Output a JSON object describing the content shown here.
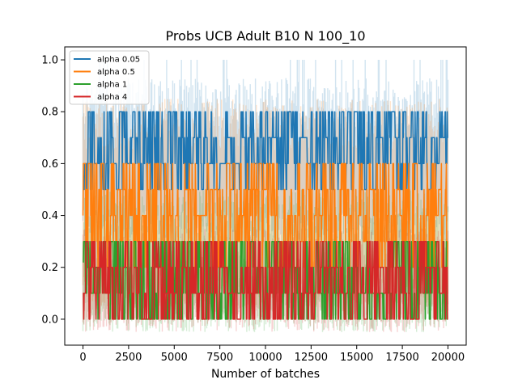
{
  "chart_data": {
    "type": "line",
    "title": "Probs UCB Adult B10 N 100_10",
    "xlabel": "Number of batches",
    "ylabel": "",
    "xlim": [
      -1000,
      21000
    ],
    "ylim": [
      -0.1,
      1.05
    ],
    "xticks": [
      0,
      2500,
      5000,
      7500,
      10000,
      12500,
      15000,
      17500,
      20000
    ],
    "yticks": [
      0.0,
      0.2,
      0.4,
      0.6,
      0.8,
      1.0
    ],
    "xtick_labels": [
      "0",
      "2500",
      "5000",
      "7500",
      "10000",
      "12500",
      "15000",
      "17500",
      "20000"
    ],
    "ytick_labels": [
      "0.0",
      "0.2",
      "0.4",
      "0.6",
      "0.8",
      "1.0"
    ],
    "grid": false,
    "legend_position": "top-left",
    "series": [
      {
        "name": "alpha 0.05",
        "color": "#1f77b4",
        "levels": [
          0.5,
          0.6,
          0.7,
          0.8
        ],
        "center": 0.62,
        "band_low": 0.3,
        "band_high": 0.93,
        "band_peak": 1.0
      },
      {
        "name": "alpha 0.5",
        "color": "#ff7f0e",
        "levels": [
          0.2,
          0.3,
          0.4,
          0.5,
          0.6
        ],
        "center": 0.4,
        "band_low": 0.05,
        "band_high": 0.85
      },
      {
        "name": "alpha 1",
        "color": "#2ca02c",
        "levels": [
          0.0,
          0.1,
          0.2,
          0.3
        ],
        "center": 0.22,
        "band_low": -0.05,
        "band_high": 0.5
      },
      {
        "name": "alpha 4",
        "color": "#d62728",
        "levels": [
          0.0,
          0.1,
          0.2,
          0.3
        ],
        "center": 0.1,
        "band_low": -0.05,
        "band_high": 0.35
      }
    ]
  }
}
